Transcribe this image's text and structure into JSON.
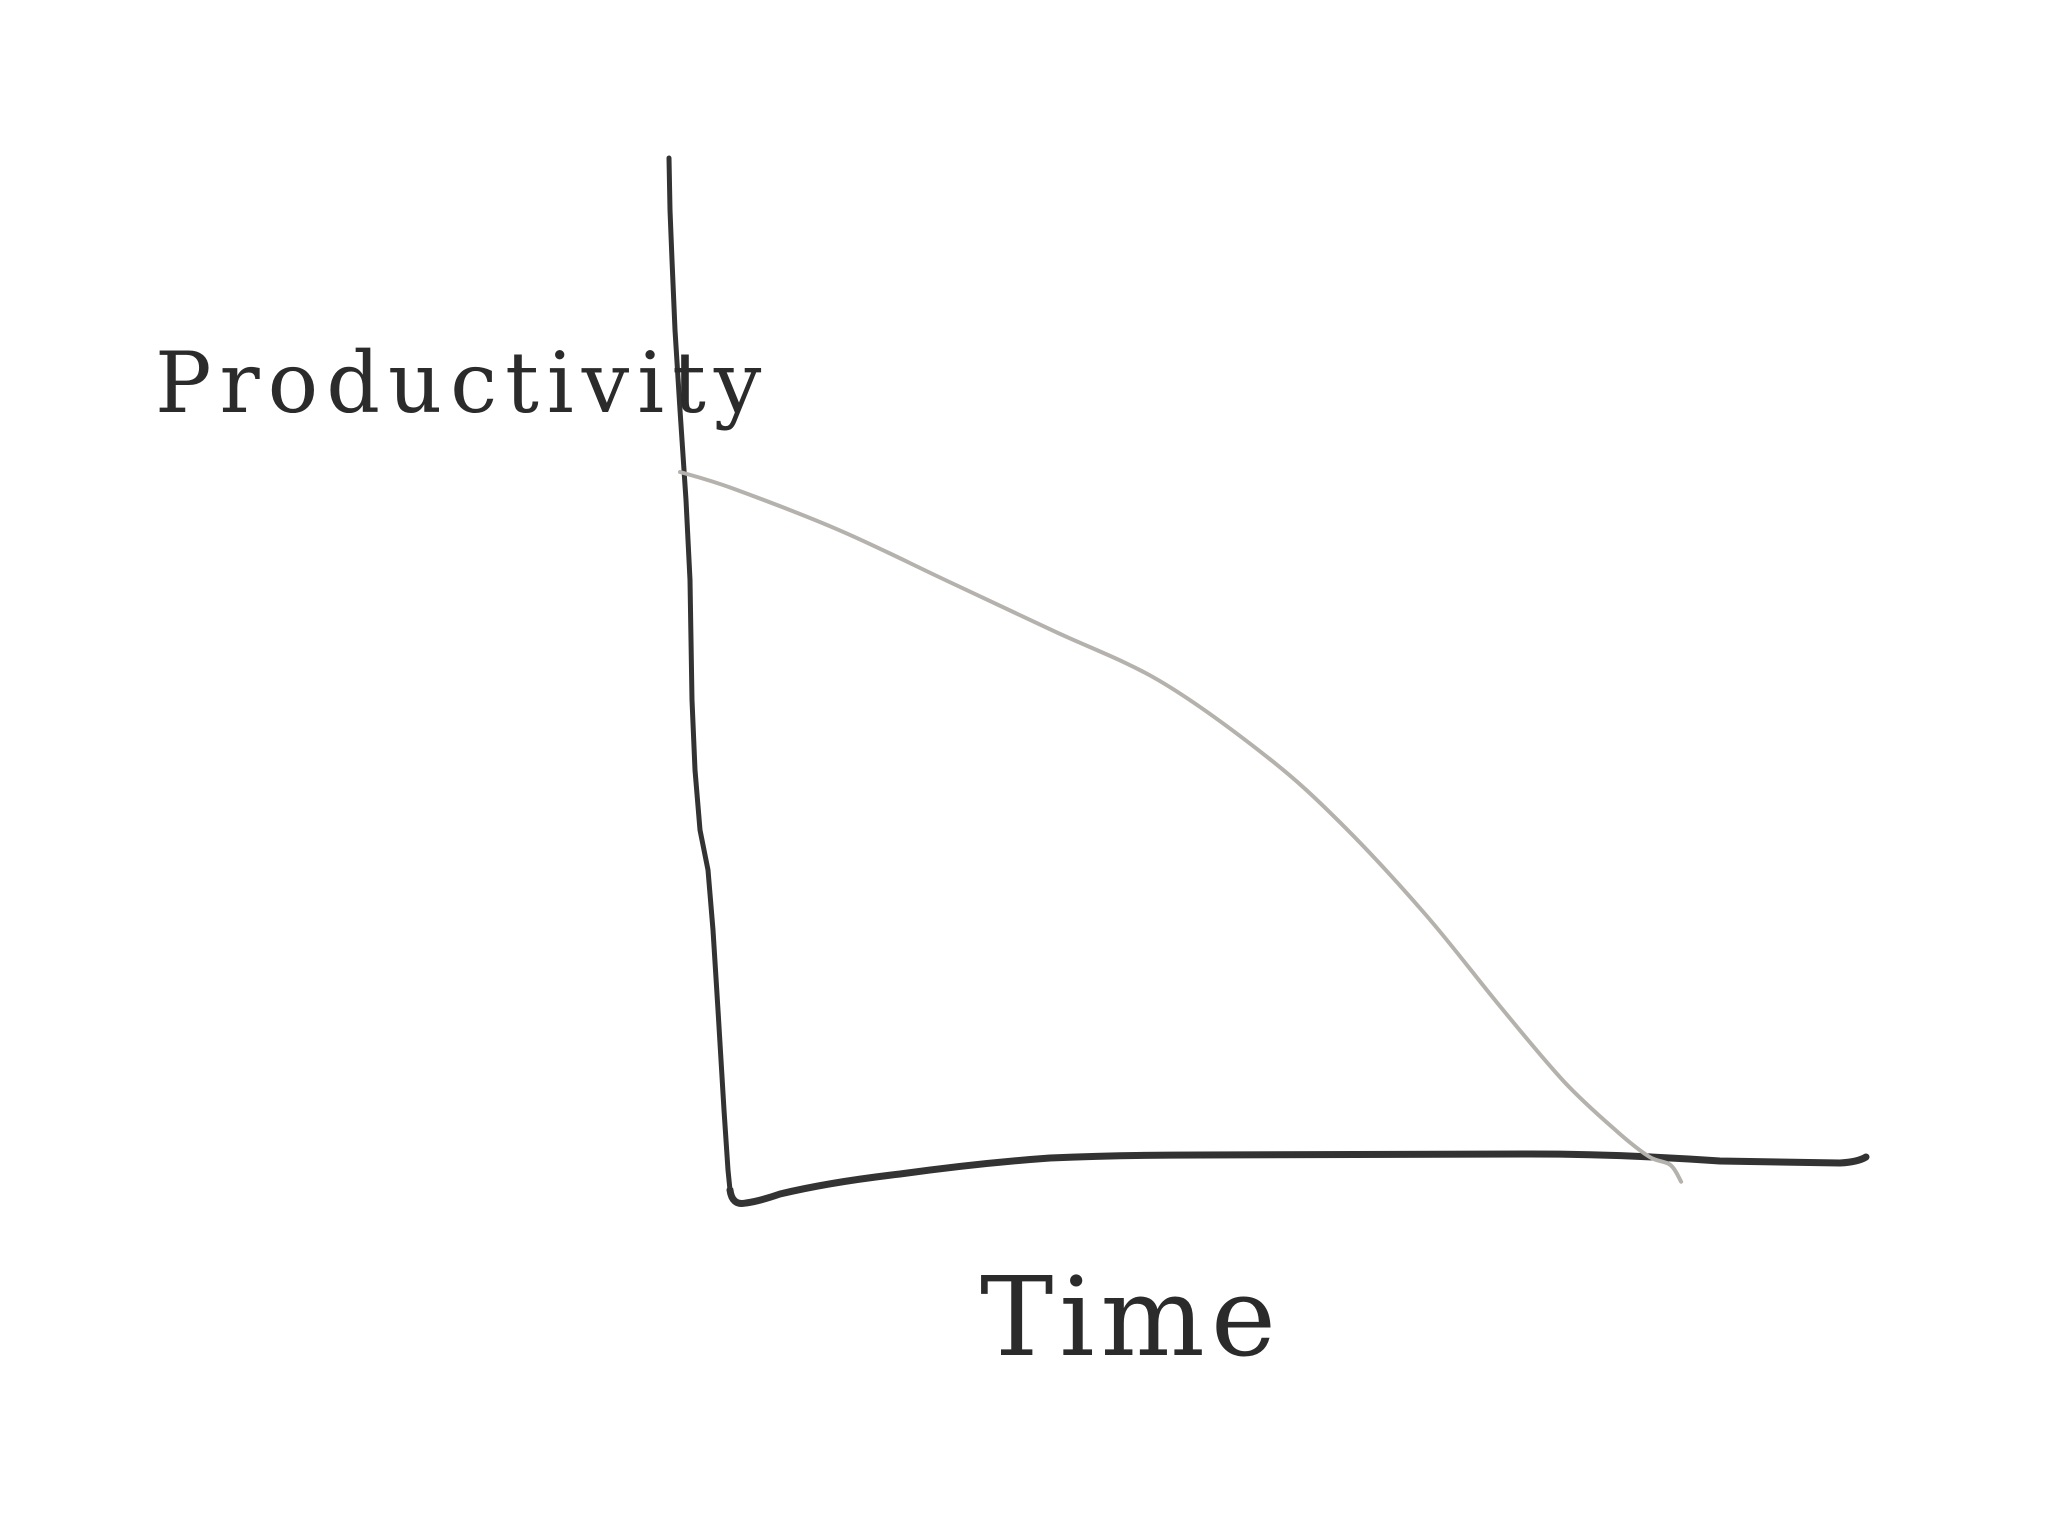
{
  "chart_data": {
    "type": "line",
    "title": "",
    "xlabel": "Time",
    "ylabel": "Productivity",
    "ticks": false,
    "grid": false,
    "legend": "none",
    "xlim": [
      0,
      1
    ],
    "ylim": [
      0,
      1
    ],
    "series": [
      {
        "x": [
          0.0,
          0.05,
          0.15,
          0.25,
          0.35,
          0.45,
          0.55,
          0.62,
          0.7,
          0.77,
          0.83,
          0.88,
          0.91,
          0.93,
          0.94
        ],
        "y": [
          0.83,
          0.81,
          0.76,
          0.7,
          0.64,
          0.58,
          0.49,
          0.41,
          0.3,
          0.19,
          0.1,
          0.04,
          0.01,
          0.0,
          -0.02
        ]
      }
    ]
  },
  "colors": {
    "axis": "#333333",
    "curve": "#b5b2ad",
    "text": "#2b2b2b",
    "background": "#ffffff"
  }
}
